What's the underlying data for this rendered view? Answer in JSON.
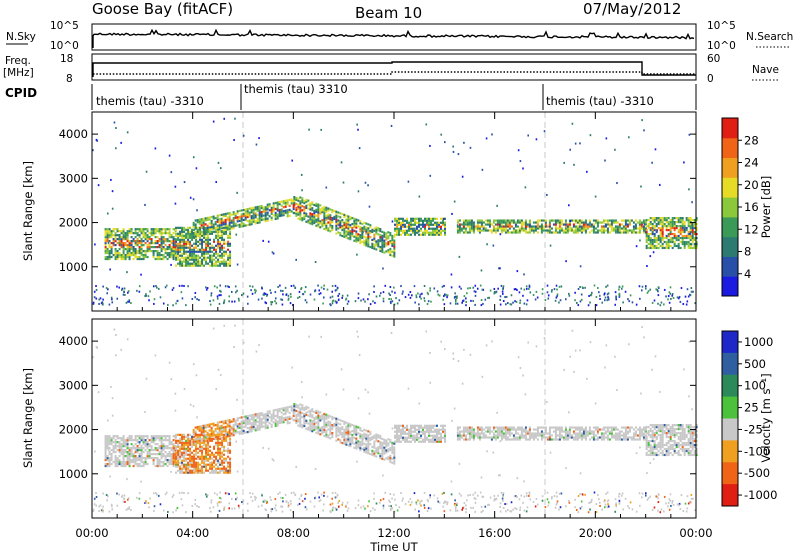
{
  "header": {
    "station": "Goose Bay (fitACF)",
    "beam": "Beam 10",
    "date": "07/May/2012"
  },
  "params": {
    "nsky_label": "N.Sky",
    "nsky_ticks": [
      "10^5",
      "10^0"
    ],
    "nsearch_label": "N.Search",
    "nsearch_ticks": [
      "10^5",
      "10^0"
    ],
    "freq_label": "Freq.",
    "freq_unit": "[MHz]",
    "freq_ticks": [
      "18",
      "8"
    ],
    "nave_label": "Nave",
    "nave_ticks": [
      "60",
      "0"
    ],
    "cpid_label": "CPID"
  },
  "cpid_segments": [
    {
      "label": "themis (tau) -3310",
      "start_hour": 0
    },
    {
      "label": "themis (tau) 3310",
      "start_hour": 6
    },
    {
      "label": "themis (tau) -3310",
      "start_hour": 18
    }
  ],
  "chart_data": [
    {
      "type": "heatmap",
      "panel": "power",
      "ylabel": "Slant Range [km]",
      "ylim": [
        0,
        4500
      ],
      "yticks": [
        "1000",
        "2000",
        "3000",
        "4000"
      ],
      "xlim_hours": [
        0,
        24
      ],
      "colorbar": {
        "label": "Power [dB]",
        "ticks": [
          "4",
          "8",
          "12",
          "16",
          "20",
          "24",
          "28"
        ],
        "range": [
          0,
          30
        ],
        "colors": [
          "#1a1ae0",
          "#2850a8",
          "#2d7a70",
          "#3c9a58",
          "#8cc83c",
          "#e6dc28",
          "#f0a020",
          "#f06418",
          "#e01e14"
        ]
      },
      "echo_bands": [
        {
          "start_hour": 0.5,
          "end_hour": 3.3,
          "range_center_km": 1550,
          "range_width_km": 700
        },
        {
          "start_hour": 3.3,
          "end_hour": 5.5,
          "range_center_km": 1500,
          "range_width_km": 900
        },
        {
          "start_hour": 4.0,
          "end_hour": 8.0,
          "range_center_km": 2250,
          "range_width_km": 400
        },
        {
          "start_hour": 8.0,
          "end_hour": 12.0,
          "range_center_km": 1900,
          "range_width_km": 500
        },
        {
          "start_hour": 12.0,
          "end_hour": 14.0,
          "range_center_km": 1950,
          "range_width_km": 400
        },
        {
          "start_hour": 14.5,
          "end_hour": 22.0,
          "range_center_km": 1950,
          "range_width_km": 300
        },
        {
          "start_hour": 22.0,
          "end_hour": 24.0,
          "range_center_km": 1800,
          "range_width_km": 700
        }
      ]
    },
    {
      "type": "heatmap",
      "panel": "velocity",
      "ylabel": "Slant Range [km]",
      "ylim": [
        0,
        4500
      ],
      "yticks": [
        "1000",
        "2000",
        "3000",
        "4000"
      ],
      "xlim_hours": [
        0,
        24
      ],
      "xlabel": "Time UT",
      "xticks": [
        "00:00",
        "04:00",
        "08:00",
        "12:00",
        "16:00",
        "20:00",
        "00:00"
      ],
      "colorbar": {
        "label": "Velocity [m s⁻¹]",
        "ticks": [
          "1000",
          "500",
          "100",
          "25",
          "-25",
          "-100",
          "-500",
          "-1000"
        ],
        "colors": [
          "#1e28c8",
          "#2f5fa0",
          "#2c8a5a",
          "#4cc23c",
          "#c8c8c8",
          "#f0a020",
          "#f06418",
          "#e01e14"
        ]
      }
    }
  ]
}
